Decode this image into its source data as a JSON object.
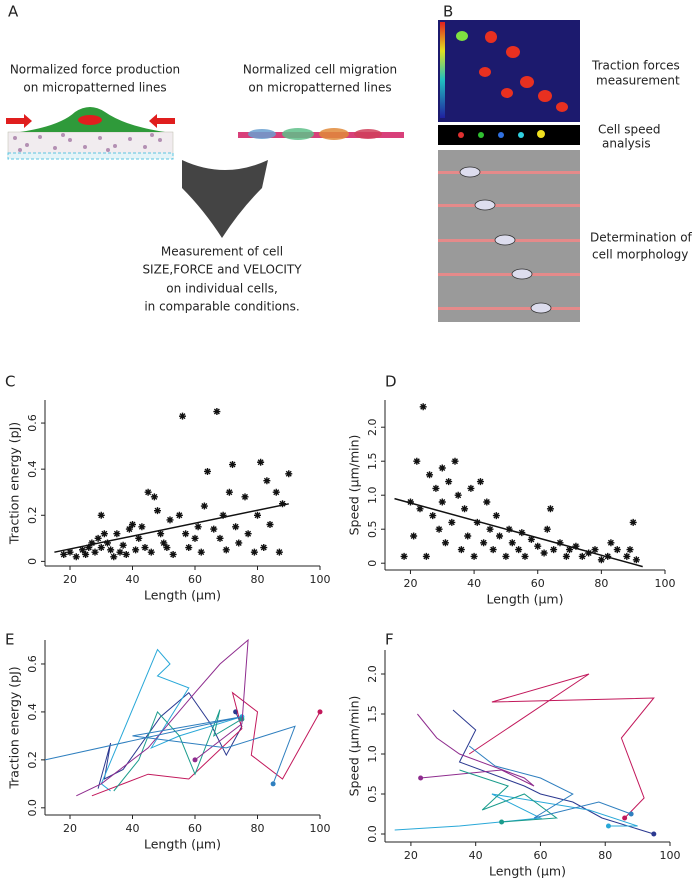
{
  "panel_labels": [
    "A",
    "B",
    "C",
    "D",
    "E",
    "F"
  ],
  "panel_a": {
    "force_caption": [
      "Normalized force production",
      "on micropatterned lines"
    ],
    "migration_caption": [
      "Normalized cell migration",
      "on micropatterned lines"
    ],
    "summary": [
      "Measurement of cell",
      "SIZE,FORCE and VELOCITY",
      "on individual cells,",
      "in comparable conditions."
    ]
  },
  "panel_b": {
    "traction": [
      "Traction forces",
      "measurement"
    ],
    "speed": [
      "Cell speed",
      "analysis"
    ],
    "morphology": [
      "Determination of",
      "cell morphology"
    ]
  },
  "chart_data": [
    {
      "type": "scatter",
      "xlabel": "Length (μm)",
      "ylabel": "Traction energy (pJ)",
      "x": [
        18,
        20,
        22,
        24,
        25,
        26,
        27,
        28,
        29,
        30,
        30,
        31,
        32,
        33,
        34,
        35,
        36,
        37,
        38,
        39,
        40,
        41,
        42,
        43,
        44,
        45,
        46,
        47,
        48,
        49,
        50,
        51,
        52,
        53,
        55,
        56,
        57,
        58,
        60,
        61,
        62,
        63,
        64,
        66,
        67,
        68,
        69,
        70,
        71,
        72,
        73,
        74,
        76,
        77,
        79,
        80,
        81,
        82,
        83,
        84,
        86,
        87,
        88,
        90
      ],
      "values": [
        0.03,
        0.04,
        0.02,
        0.05,
        0.03,
        0.06,
        0.08,
        0.04,
        0.1,
        0.06,
        0.2,
        0.12,
        0.08,
        0.05,
        0.02,
        0.12,
        0.04,
        0.07,
        0.03,
        0.14,
        0.16,
        0.05,
        0.1,
        0.15,
        0.06,
        0.3,
        0.04,
        0.28,
        0.22,
        0.12,
        0.08,
        0.06,
        0.18,
        0.03,
        0.2,
        0.63,
        0.12,
        0.06,
        0.1,
        0.15,
        0.04,
        0.24,
        0.39,
        0.14,
        0.65,
        0.1,
        0.2,
        0.05,
        0.3,
        0.42,
        0.15,
        0.08,
        0.28,
        0.12,
        0.04,
        0.2,
        0.43,
        0.06,
        0.35,
        0.16,
        0.3,
        0.04,
        0.25,
        0.38
      ],
      "trend": {
        "x": [
          15,
          90
        ],
        "values": [
          0.04,
          0.25
        ]
      },
      "color": "#111111",
      "xlim": [
        12,
        100
      ],
      "ylim": [
        -0.02,
        0.7
      ],
      "xticks": [
        20,
        40,
        60,
        80,
        100
      ],
      "yticks": [
        0,
        0.2,
        0.4,
        0.6
      ]
    },
    {
      "type": "scatter",
      "xlabel": "Length (μm)",
      "ylabel": "Speed (μm/min)",
      "x": [
        18,
        20,
        21,
        22,
        23,
        24,
        25,
        26,
        27,
        28,
        29,
        30,
        30,
        31,
        32,
        33,
        34,
        35,
        36,
        37,
        38,
        39,
        40,
        41,
        42,
        43,
        44,
        45,
        46,
        47,
        48,
        50,
        51,
        52,
        54,
        55,
        56,
        58,
        60,
        62,
        63,
        64,
        65,
        67,
        69,
        70,
        72,
        74,
        76,
        78,
        80,
        82,
        83,
        85,
        88,
        89,
        90,
        91
      ],
      "values": [
        0.1,
        0.9,
        0.4,
        1.5,
        0.8,
        2.3,
        0.1,
        1.3,
        0.7,
        1.1,
        0.5,
        1.4,
        0.9,
        0.3,
        1.2,
        0.6,
        1.5,
        1.0,
        0.2,
        0.8,
        0.4,
        1.1,
        0.1,
        0.6,
        1.2,
        0.3,
        0.9,
        0.5,
        0.2,
        0.7,
        0.4,
        0.1,
        0.5,
        0.3,
        0.2,
        0.45,
        0.1,
        0.35,
        0.25,
        0.15,
        0.5,
        0.8,
        0.2,
        0.3,
        0.1,
        0.2,
        0.25,
        0.1,
        0.15,
        0.2,
        0.05,
        0.1,
        0.3,
        0.2,
        0.1,
        0.2,
        0.6,
        0.05
      ],
      "trend": {
        "x": [
          15,
          93
        ],
        "values": [
          0.95,
          -0.05
        ]
      },
      "color": "#111111",
      "xlim": [
        12,
        100
      ],
      "ylim": [
        -0.1,
        2.4
      ],
      "xticks": [
        20,
        40,
        60,
        80,
        100
      ],
      "yticks": [
        0,
        0.5,
        {
          "value": 1,
          "label": "1.0"
        },
        1.5,
        {
          "value": 2,
          "label": "2.0"
        }
      ]
    },
    {
      "type": "line",
      "xlabel": "Length (μm)",
      "ylabel": "Traction energy (pJ)",
      "series": [
        {
          "color": "#2b3990",
          "x": [
            29,
            33,
            31,
            37,
            49,
            58,
            65,
            70,
            75,
            73
          ],
          "values": [
            0.08,
            0.27,
            0.12,
            0.16,
            0.38,
            0.48,
            0.35,
            0.22,
            0.34,
            0.4
          ]
        },
        {
          "color": "#29a8d8",
          "x": [
            33,
            30,
            48,
            52,
            48,
            58,
            46,
            55,
            75
          ],
          "values": [
            0.07,
            0.1,
            0.66,
            0.6,
            0.55,
            0.5,
            0.25,
            0.3,
            0.38
          ]
        },
        {
          "color": "#c2185b",
          "x": [
            27,
            45,
            58,
            75,
            72,
            80,
            78,
            88,
            100
          ],
          "values": [
            0.05,
            0.14,
            0.12,
            0.33,
            0.48,
            0.4,
            0.22,
            0.12,
            0.4
          ]
        },
        {
          "color": "#1a9c8c",
          "x": [
            34,
            42,
            48,
            55,
            60,
            68,
            66,
            75
          ],
          "values": [
            0.07,
            0.2,
            0.4,
            0.3,
            0.14,
            0.41,
            0.3,
            0.37
          ]
        },
        {
          "color": "#8e2c8e",
          "x": [
            22,
            30,
            45,
            60,
            68,
            77,
            75,
            60
          ],
          "values": [
            0.05,
            0.1,
            0.25,
            0.48,
            0.6,
            0.7,
            0.35,
            0.2
          ]
        },
        {
          "color": "#2f7fbf",
          "x": [
            12,
            75,
            40,
            70,
            92,
            85
          ],
          "values": [
            0.2,
            0.38,
            0.3,
            0.25,
            0.34,
            0.1
          ]
        }
      ],
      "xlim": [
        12,
        100
      ],
      "ylim": [
        -0.03,
        0.7
      ],
      "xticks": [
        20,
        40,
        60,
        80,
        100
      ],
      "yticks": [
        {
          "value": 0,
          "label": "0.0"
        },
        0.2,
        0.4,
        0.6
      ]
    },
    {
      "type": "line",
      "xlabel": "Length (μm)",
      "ylabel": "Speed (μm/min)",
      "series": [
        {
          "color": "#c2185b",
          "x": [
            38,
            75,
            45,
            95,
            85,
            92,
            86
          ],
          "values": [
            1.0,
            2.0,
            1.65,
            1.7,
            1.2,
            0.45,
            0.2
          ]
        },
        {
          "color": "#2b3990",
          "x": [
            33,
            40,
            35,
            55,
            60,
            70,
            79,
            95
          ],
          "values": [
            1.55,
            1.3,
            0.9,
            0.6,
            0.5,
            0.4,
            0.2,
            0.0
          ]
        },
        {
          "color": "#29a8d8",
          "x": [
            15,
            35,
            60,
            45,
            75,
            90,
            81
          ],
          "values": [
            0.05,
            0.1,
            0.2,
            0.5,
            0.3,
            0.1,
            0.1
          ]
        },
        {
          "color": "#8e2c8e",
          "x": [
            22,
            28,
            35,
            55,
            58,
            48,
            23
          ],
          "values": [
            1.5,
            1.2,
            1.0,
            0.7,
            0.6,
            0.8,
            0.7
          ]
        },
        {
          "color": "#1a9c8c",
          "x": [
            35,
            50,
            42,
            55,
            65,
            48
          ],
          "values": [
            0.8,
            0.6,
            0.3,
            0.5,
            0.2,
            0.15
          ]
        },
        {
          "color": "#2f7fbf",
          "x": [
            38,
            46,
            60,
            70,
            58,
            78,
            88
          ],
          "values": [
            1.1,
            0.85,
            0.7,
            0.5,
            0.2,
            0.4,
            0.25
          ]
        }
      ],
      "xlim": [
        12,
        100
      ],
      "ylim": [
        -0.1,
        2.3
      ],
      "xticks": [
        20,
        40,
        60,
        80,
        100
      ],
      "yticks": [
        {
          "value": 0,
          "label": "0.0"
        },
        0.5,
        {
          "value": 1,
          "label": "1.0"
        },
        1.5,
        {
          "value": 2,
          "label": "2.0"
        }
      ]
    }
  ]
}
